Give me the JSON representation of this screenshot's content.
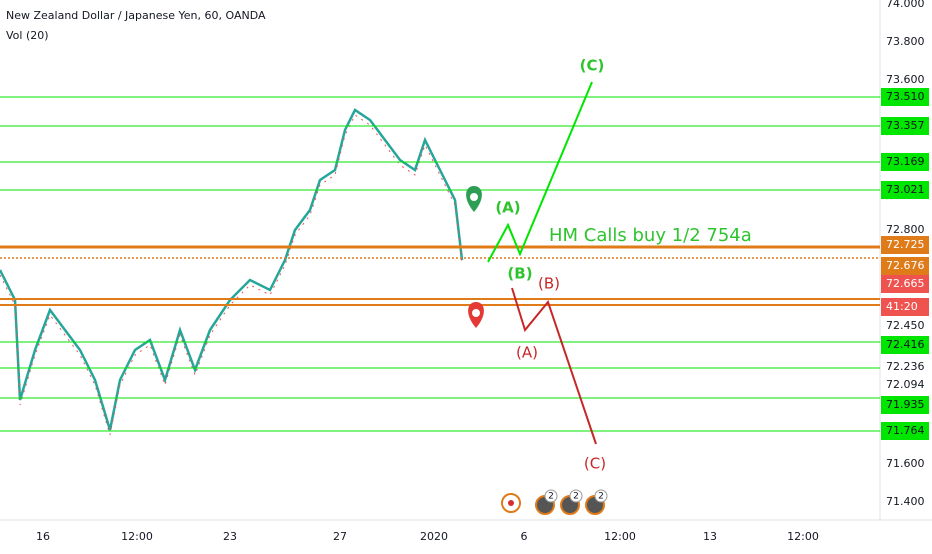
{
  "header": {
    "title": "New Zealand Dollar / Japanese Yen, 60, OANDA",
    "indicator": "Vol (20)"
  },
  "price_axis": {
    "ticks": [
      "74.000",
      "73.800",
      "73.600",
      "72.800",
      "71.600",
      "71.400"
    ],
    "green_levels": [
      "73.510",
      "73.357",
      "73.169",
      "73.021",
      "72.416",
      "71.935",
      "71.764"
    ],
    "plain_levels": [
      "72.450",
      "72.236",
      "72.094"
    ],
    "orange_levels": [
      "72.725",
      "72.676"
    ],
    "current_price": "72.665",
    "countdown": "41:20"
  },
  "time_axis": [
    "16",
    "12:00",
    "23",
    "27",
    "2020",
    "6",
    "12:00",
    "13",
    "12:00"
  ],
  "annotations": {
    "note": "HM Calls buy 1/2 754a",
    "bull_waves": [
      "(A)",
      "(B)",
      "(C)"
    ],
    "bear_waves": [
      "(A)",
      "(B)",
      "(C)"
    ],
    "badges": [
      "2",
      "2",
      "2"
    ]
  }
}
